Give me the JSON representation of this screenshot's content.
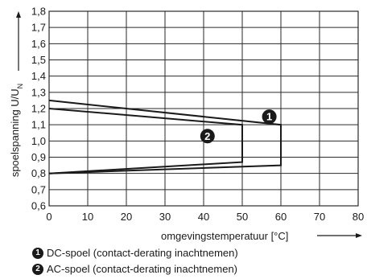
{
  "chart_data": {
    "type": "line",
    "xlabel": "omgevingstemperatuur [°C]",
    "ylabel_main": "spoelspanning U/U",
    "ylabel_sub": "N",
    "xlim": [
      0,
      80
    ],
    "ylim": [
      0.6,
      1.8
    ],
    "x_ticks": [
      "0",
      "10",
      "20",
      "30",
      "40",
      "50",
      "60",
      "70",
      "80"
    ],
    "y_ticks": [
      "0,6",
      "0,7",
      "0,8",
      "0,9",
      "1,0",
      "1,1",
      "1,2",
      "1,3",
      "1,4",
      "1,5",
      "1,6",
      "1,7",
      "1,8"
    ],
    "grid": true,
    "series": [
      {
        "marker": "1",
        "name": "DC-spoel (contact-derating inachtnemen)",
        "points": [
          [
            0,
            1.25
          ],
          [
            60,
            1.1
          ],
          [
            60,
            0.85
          ],
          [
            0,
            0.8
          ]
        ]
      },
      {
        "marker": "2",
        "name": "AC-spoel (contact-derating inachtnemen)",
        "points": [
          [
            0,
            1.2
          ],
          [
            50,
            1.1
          ],
          [
            50,
            0.87
          ],
          [
            0,
            0.8
          ]
        ]
      }
    ],
    "markers": [
      {
        "label": "1",
        "x": 57,
        "y": 1.15
      },
      {
        "label": "2",
        "x": 41,
        "y": 1.03
      }
    ]
  },
  "colors": {
    "line": "#1a1a1a",
    "grid": "#2a2a2a",
    "marker_bg": "#1a1a1a"
  }
}
